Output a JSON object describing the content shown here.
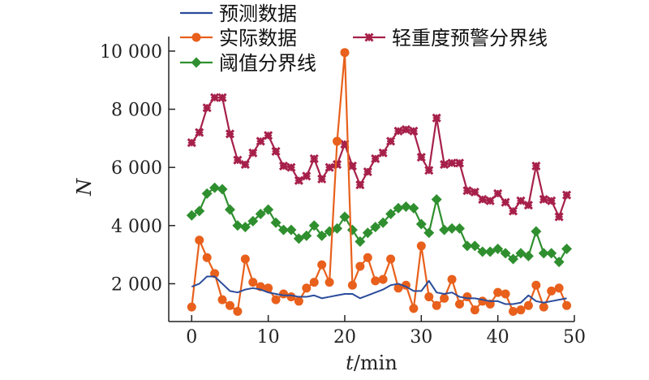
{
  "chart_data": {
    "type": "line",
    "xlabel_var": "t",
    "xlabel_unit": "/min",
    "ylabel": "N",
    "xlim": [
      -3,
      50
    ],
    "ylim": [
      700,
      10500
    ],
    "xticks": [
      0,
      10,
      20,
      30,
      40,
      50
    ],
    "yticks": [
      2000,
      4000,
      6000,
      8000,
      10000
    ],
    "ytick_labels": [
      "2 000",
      "4 000",
      "6 000",
      "8 000",
      "10 000"
    ],
    "grid": false,
    "legend_position": "top",
    "x": [
      0,
      1,
      2,
      3,
      4,
      5,
      6,
      7,
      8,
      9,
      10,
      11,
      12,
      13,
      14,
      15,
      16,
      17,
      18,
      19,
      20,
      21,
      22,
      23,
      24,
      25,
      26,
      27,
      28,
      29,
      30,
      31,
      32,
      33,
      34,
      35,
      36,
      37,
      38,
      39,
      40,
      41,
      42,
      43,
      44,
      45,
      46,
      47,
      48,
      49
    ],
    "series": [
      {
        "name": "预测数据",
        "color": "#2b4c9b",
        "marker": "none",
        "values": [
          1900,
          2000,
          2250,
          2250,
          2000,
          1750,
          1700,
          1800,
          1850,
          1800,
          1700,
          1650,
          1600,
          1600,
          1550,
          1550,
          1600,
          1500,
          1550,
          1600,
          1650,
          1650,
          1500,
          1600,
          1700,
          1800,
          1950,
          2000,
          1900,
          1750,
          1750,
          2100,
          1700,
          1650,
          1700,
          1550,
          1500,
          1500,
          1450,
          1400,
          1400,
          1300,
          1300,
          1350,
          1600,
          1400,
          1350,
          1400,
          1450,
          1500
        ]
      },
      {
        "name": "实际数据",
        "color": "#e8601c",
        "marker": "circle",
        "values": [
          1200,
          3500,
          2900,
          2350,
          1450,
          1250,
          1050,
          2850,
          2050,
          1900,
          1850,
          1450,
          1650,
          1550,
          1400,
          1850,
          2050,
          2650,
          2050,
          6900,
          9950,
          1950,
          2600,
          2900,
          2100,
          2150,
          2850,
          1850,
          1950,
          1150,
          3300,
          1550,
          1250,
          1500,
          2150,
          1300,
          1550,
          1100,
          1400,
          1300,
          1700,
          1650,
          1050,
          1100,
          1250,
          1950,
          1200,
          1750,
          1850,
          1250
        ]
      },
      {
        "name": "轻重度预警分界线",
        "color": "#a6204a",
        "marker": "cross",
        "values": [
          6850,
          7200,
          8050,
          8400,
          8400,
          7150,
          6250,
          6100,
          6500,
          6900,
          7100,
          6550,
          6050,
          6000,
          5550,
          5700,
          6300,
          5600,
          6000,
          6100,
          6800,
          6050,
          5400,
          5850,
          6300,
          6500,
          6900,
          7250,
          7300,
          7250,
          6350,
          5900,
          7700,
          6100,
          6150,
          6150,
          5200,
          5150,
          4900,
          4850,
          5100,
          4800,
          4500,
          4850,
          4700,
          6050,
          4900,
          4850,
          4300,
          5050
        ]
      },
      {
        "name": "阈值分界线",
        "color": "#2f8f2f",
        "marker": "diamond",
        "values": [
          4350,
          4500,
          5100,
          5300,
          5250,
          4550,
          4000,
          3950,
          4150,
          4400,
          4550,
          4100,
          3850,
          3850,
          3550,
          3650,
          4000,
          3650,
          3800,
          3900,
          4300,
          3850,
          3450,
          3750,
          3950,
          4100,
          4400,
          4600,
          4650,
          4600,
          4050,
          3750,
          4900,
          3850,
          3900,
          3900,
          3300,
          3300,
          3100,
          3100,
          3200,
          3050,
          2850,
          3050,
          2950,
          3800,
          3050,
          3050,
          2750,
          3200
        ]
      }
    ],
    "series_order_note_removed": true
  }
}
